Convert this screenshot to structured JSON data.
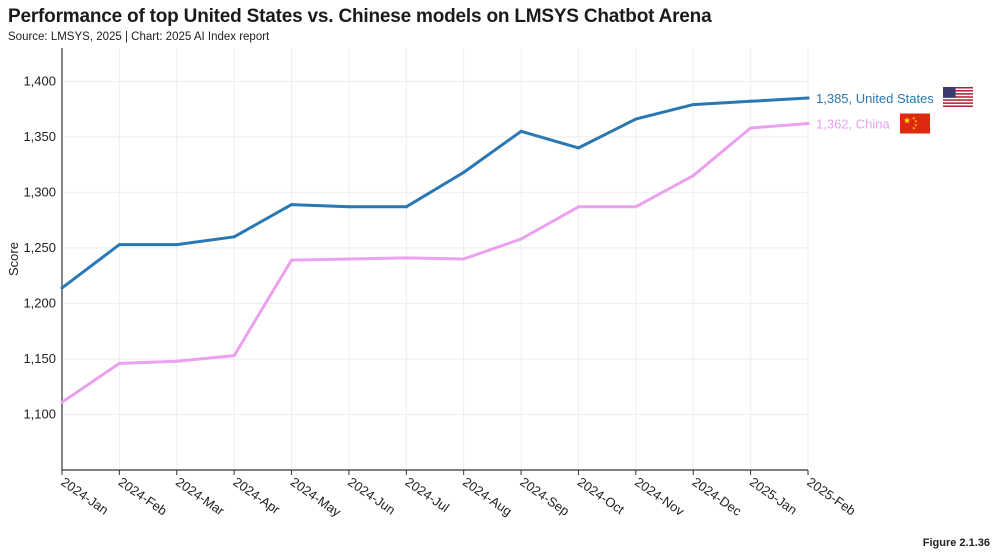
{
  "header": {
    "title": "Performance of top United States vs. Chinese models on LMSYS Chatbot Arena",
    "subtitle": "Source: LMSYS, 2025 | Chart: 2025 AI Index report"
  },
  "footer": {
    "figure": "Figure 2.1.36"
  },
  "colors": {
    "us": "#2a78b3",
    "china": "#eba0f0",
    "grid": "#eeeeee",
    "axis": "#333333"
  },
  "chart_data": {
    "type": "line",
    "title": "Performance of top United States vs. Chinese models on LMSYS Chatbot Arena",
    "xlabel": "",
    "ylabel": "Score",
    "ylim": [
      1050,
      1430
    ],
    "grid": true,
    "legend": "end-of-line labels",
    "categories": [
      "2024-Jan",
      "2024-Feb",
      "2024-Mar",
      "2024-Apr",
      "2024-May",
      "2024-Jun",
      "2024-Jul",
      "2024-Aug",
      "2024-Sep",
      "2024-Oct",
      "2024-Nov",
      "2024-Dec",
      "2025-Jan",
      "2025-Feb"
    ],
    "yticks": [
      1100,
      1150,
      1200,
      1250,
      1300,
      1350,
      1400
    ],
    "ytick_labels": [
      "1,100",
      "1,150",
      "1,200",
      "1,250",
      "1,300",
      "1,350",
      "1,400"
    ],
    "series": [
      {
        "name": "United States",
        "end_label": "1,385, United States",
        "flag": "us-flag-icon",
        "values": [
          1214,
          1253,
          1253,
          1260,
          1289,
          1287,
          1287,
          1318,
          1355,
          1340,
          1366,
          1379,
          1382,
          1385
        ]
      },
      {
        "name": "China",
        "end_label": "1,362, China",
        "flag": "china-flag-icon",
        "values": [
          1111,
          1146,
          1148,
          1153,
          1239,
          1240,
          1241,
          1240,
          1258,
          1287,
          1287,
          1315,
          1358,
          1362
        ]
      }
    ]
  }
}
